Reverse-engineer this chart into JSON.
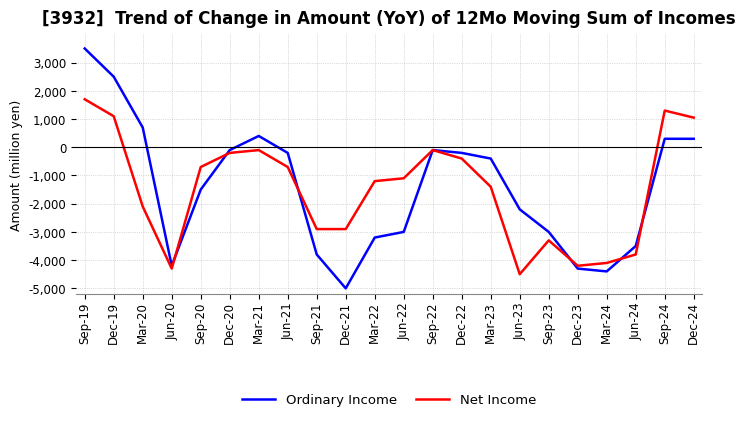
{
  "title": "[3932]  Trend of Change in Amount (YoY) of 12Mo Moving Sum of Incomes",
  "ylabel": "Amount (million yen)",
  "ylim": [
    -5200,
    4000
  ],
  "yticks": [
    3000,
    2000,
    1000,
    0,
    -1000,
    -2000,
    -3000,
    -4000,
    -5000
  ],
  "x_labels": [
    "Sep-19",
    "Dec-19",
    "Mar-20",
    "Jun-20",
    "Sep-20",
    "Dec-20",
    "Mar-21",
    "Jun-21",
    "Sep-21",
    "Dec-21",
    "Mar-22",
    "Jun-22",
    "Sep-22",
    "Dec-22",
    "Mar-23",
    "Jun-23",
    "Sep-23",
    "Dec-23",
    "Mar-24",
    "Jun-24",
    "Sep-24",
    "Dec-24"
  ],
  "ordinary_income": [
    3500,
    2500,
    700,
    -4200,
    -1500,
    -100,
    400,
    -200,
    -3800,
    -5000,
    -3200,
    -3000,
    -100,
    -200,
    -400,
    -2200,
    -3000,
    -4300,
    -4400,
    -3500,
    300,
    300
  ],
  "net_income": [
    1700,
    1100,
    -2100,
    -4300,
    -700,
    -200,
    -100,
    -700,
    -2900,
    -2900,
    -1200,
    -1100,
    -100,
    -400,
    -1400,
    -4500,
    -3300,
    -4200,
    -4100,
    -3800,
    1300,
    1050
  ],
  "ordinary_color": "#0000FF",
  "net_color": "#FF0000",
  "grid_color": "#BBBBBB",
  "background_color": "#FFFFFF",
  "title_fontsize": 12,
  "label_fontsize": 9,
  "tick_fontsize": 8.5
}
